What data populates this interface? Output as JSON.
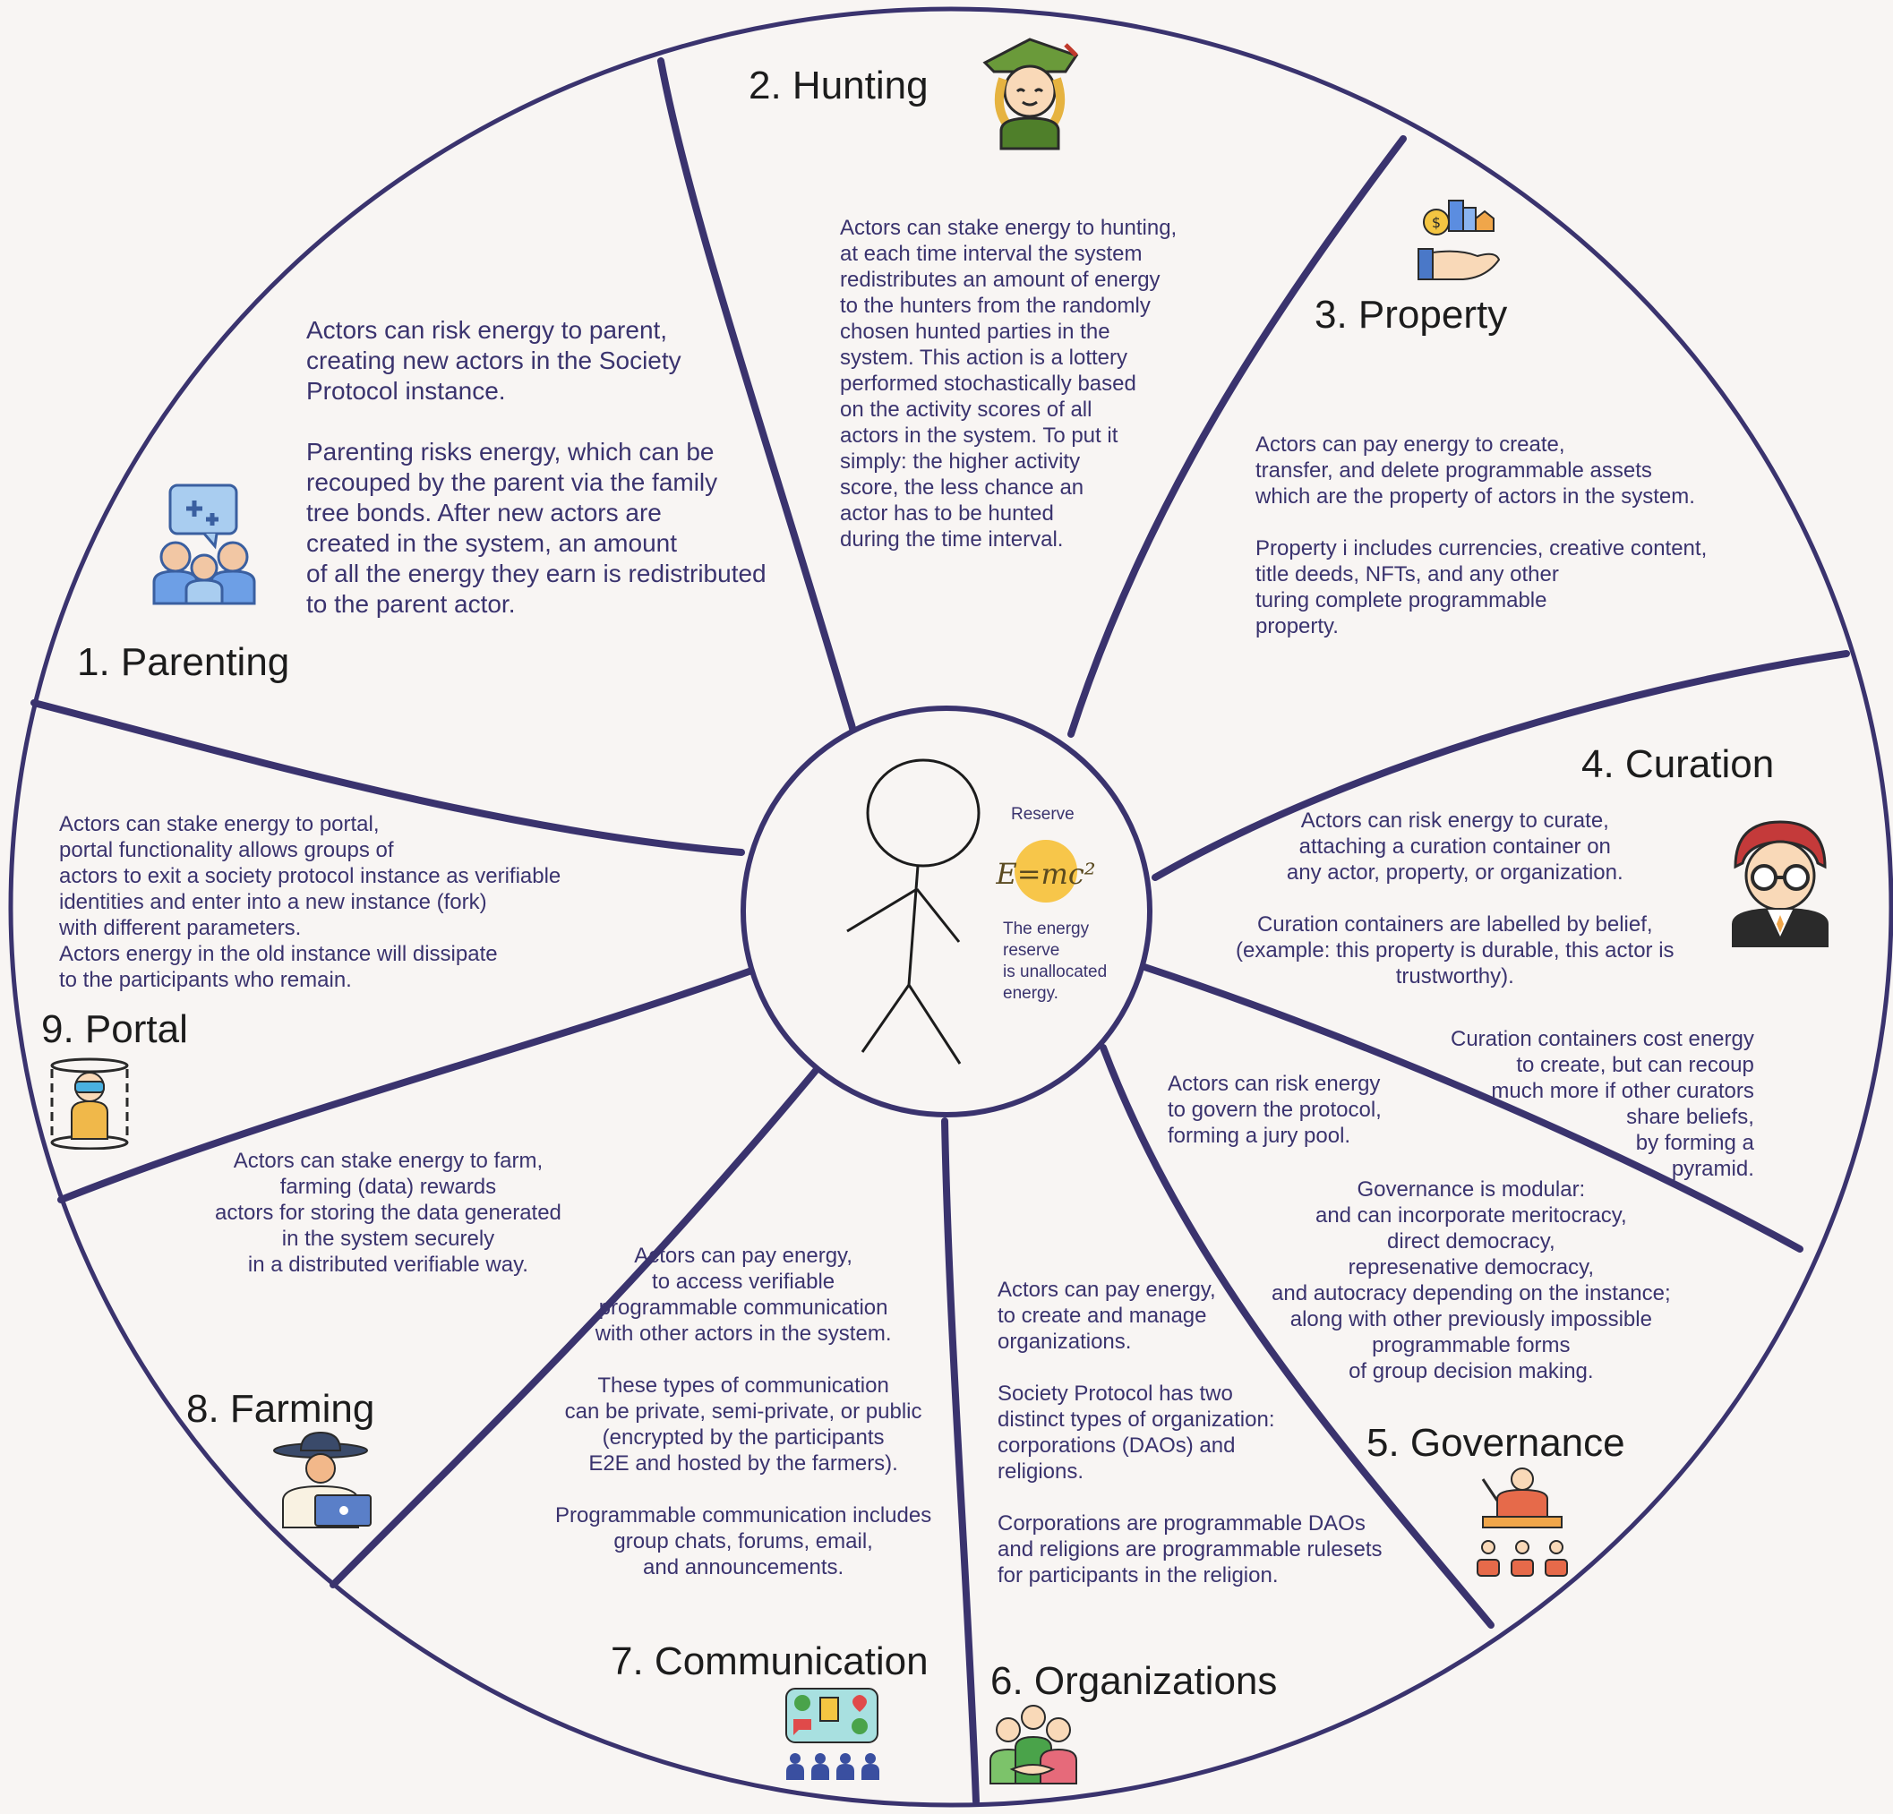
{
  "center": {
    "reserve_label": "Reserve",
    "formula": "E=mc²",
    "reserve_text": "The energy\nreserve\nis unallocated\nenergy."
  },
  "sections": {
    "parenting": {
      "title": "1. Parenting",
      "text": "Actors can risk energy to parent,\ncreating new actors in the Society\nProtocol instance.\n\nParenting risks energy, which can be\nrecouped by the parent via the family\ntree bonds. After new actors are\ncreated in the system, an amount\nof all the energy they earn is redistributed\nto the parent actor.",
      "icon": "family-icon"
    },
    "hunting": {
      "title": "2. Hunting",
      "text": "Actors can stake energy to hunting,\nat each time interval the system\nredistributes an amount of energy\nto the hunters from the randomly\nchosen hunted parties in the\nsystem. This action is a lottery\nperformed stochastically based\non the activity scores of all\nactors in the system. To put it\nsimply: the higher activity\nscore, the less chance an\nactor has to be hunted\nduring the time interval.",
      "icon": "hunter-icon"
    },
    "property": {
      "title": "3. Property",
      "text": "Actors can pay energy to create,\ntransfer, and delete programmable assets\nwhich are the property of actors in the system.\n\nProperty i includes currencies, creative content,\ntitle deeds, NFTs, and any other\nturing complete programmable\nproperty.",
      "icon": "property-hand-icon"
    },
    "curation": {
      "title": "4. Curation",
      "text": "Actors can risk energy to curate,\nattaching a curation container on\nany actor, property, or organization.\n\nCuration containers are labelled by belief,\n(example: this property is durable, this actor is\ntrustworthy).",
      "text2": "Curation containers cost energy\nto create, but can recoup\nmuch more if other curators\nshare beliefs,\nby forming a\npyramid.",
      "icon": "curator-icon"
    },
    "governance": {
      "title": "5. Governance",
      "text": "Actors can risk energy\nto govern the protocol,\nforming a jury pool.",
      "text2": "Governance is modular:\nand can incorporate meritocracy,\ndirect democracy,\nrepresenative democracy,\nand autocracy depending on the instance;\nalong with other previously impossible\nprogrammable forms\nof group decision making.",
      "icon": "speaker-podium-icon"
    },
    "organizations": {
      "title": "6. Organizations",
      "text": "Actors can pay energy,\nto create and manage\norganizations.\n\nSociety Protocol has two\ndistinct types of organization:\ncorporations (DAOs) and\nreligions.\n\nCorporations are programmable DAOs\nand religions are programmable rulesets\nfor participants in the religion.",
      "icon": "group-handshake-icon"
    },
    "communication": {
      "title": "7. Communication",
      "text": "Actors can pay energy,\nto access verifiable\nprogrammable communication\nwith other actors in the system.\n\nThese types of communication\ncan be private, semi-private, or public\n(encrypted by the participants\nE2E and hosted by the farmers).\n\nProgrammable communication includes\ngroup chats, forums, email,\nand announcements.",
      "icon": "chat-board-icon"
    },
    "farming": {
      "title": "8. Farming",
      "text": "Actors can stake energy to farm,\nfarming (data) rewards\nactors for storing the data generated\nin the system securely\nin a distributed verifiable way.",
      "icon": "farmer-laptop-icon"
    },
    "portal": {
      "title": "9. Portal",
      "text": "Actors can stake energy to portal,\nportal functionality allows groups of\nactors to exit a society protocol instance as verifiable\nidentities and enter into a new instance (fork)\nwith different parameters.\nActors energy in the old instance will dissipate\nto the participants who remain.",
      "icon": "vr-portal-icon"
    }
  },
  "colors": {
    "ink": "#3a336e",
    "title": "#1c1c1c",
    "background": "#f8f5f3",
    "reserve_badge": "#f7c64a"
  }
}
